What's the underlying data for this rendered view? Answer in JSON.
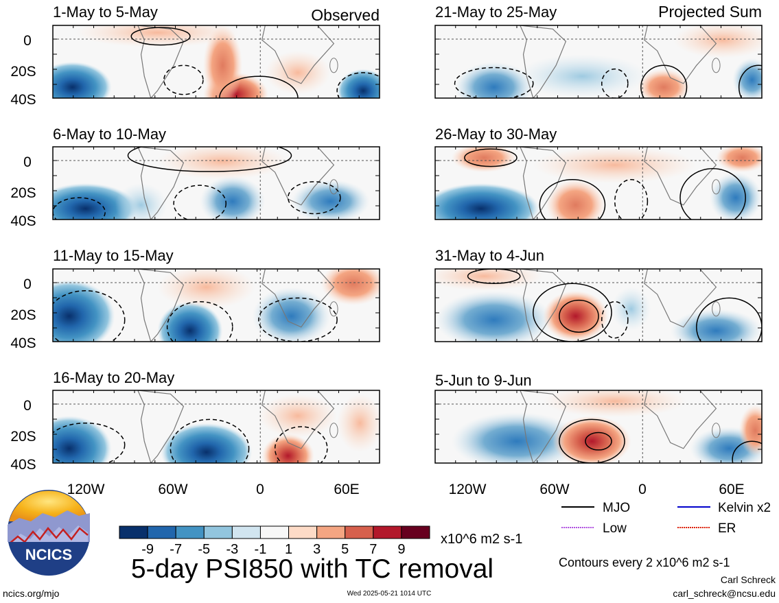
{
  "left_column": {
    "label": "Observed",
    "panels": [
      {
        "period": "1-May to 5-May"
      },
      {
        "period": "6-May to 10-May"
      },
      {
        "period": "11-May to 15-May"
      },
      {
        "period": "16-May to 20-May"
      }
    ]
  },
  "right_column": {
    "label": "Projected Sum",
    "panels": [
      {
        "period": "21-May to 25-May"
      },
      {
        "period": "26-May to 30-May"
      },
      {
        "period": "31-May to 4-Jun"
      },
      {
        "period": "5-Jun to 9-Jun"
      }
    ]
  },
  "lat_ticks": [
    "0",
    "20S",
    "40S"
  ],
  "lon_ticks": [
    "120W",
    "60W",
    "0",
    "60E"
  ],
  "colorbar": {
    "labels": [
      "-9",
      "-7",
      "-5",
      "-3",
      "-1",
      "1",
      "3",
      "5",
      "7",
      "9"
    ],
    "units": "x10^6 m2 s-1",
    "colors": [
      "#08306b",
      "#2166ac",
      "#4393c3",
      "#92c5de",
      "#d1e5f0",
      "#f7f7f7",
      "#fddbc7",
      "#f4a582",
      "#d6604d",
      "#b2182b",
      "#67001f"
    ]
  },
  "title": "5-day PSI850 with TC removal",
  "legend": {
    "items": [
      {
        "label": "MJO",
        "color": "#000000"
      },
      {
        "label": "Kelvin x2",
        "color": "#0000cc"
      },
      {
        "label": "Low",
        "color": "#b050e0"
      },
      {
        "label": "ER",
        "color": "#dd2200"
      }
    ],
    "contours_note": "Contours every 2 x10^6 m2 s-1"
  },
  "logo_text": "NCICS",
  "footer": {
    "url": "ncics.org/mjo",
    "timestamp": "Wed 2025-05-21 1014 UTC",
    "author": "Carl Schreck",
    "email": "carl_schreck@ncsu.edu"
  }
}
